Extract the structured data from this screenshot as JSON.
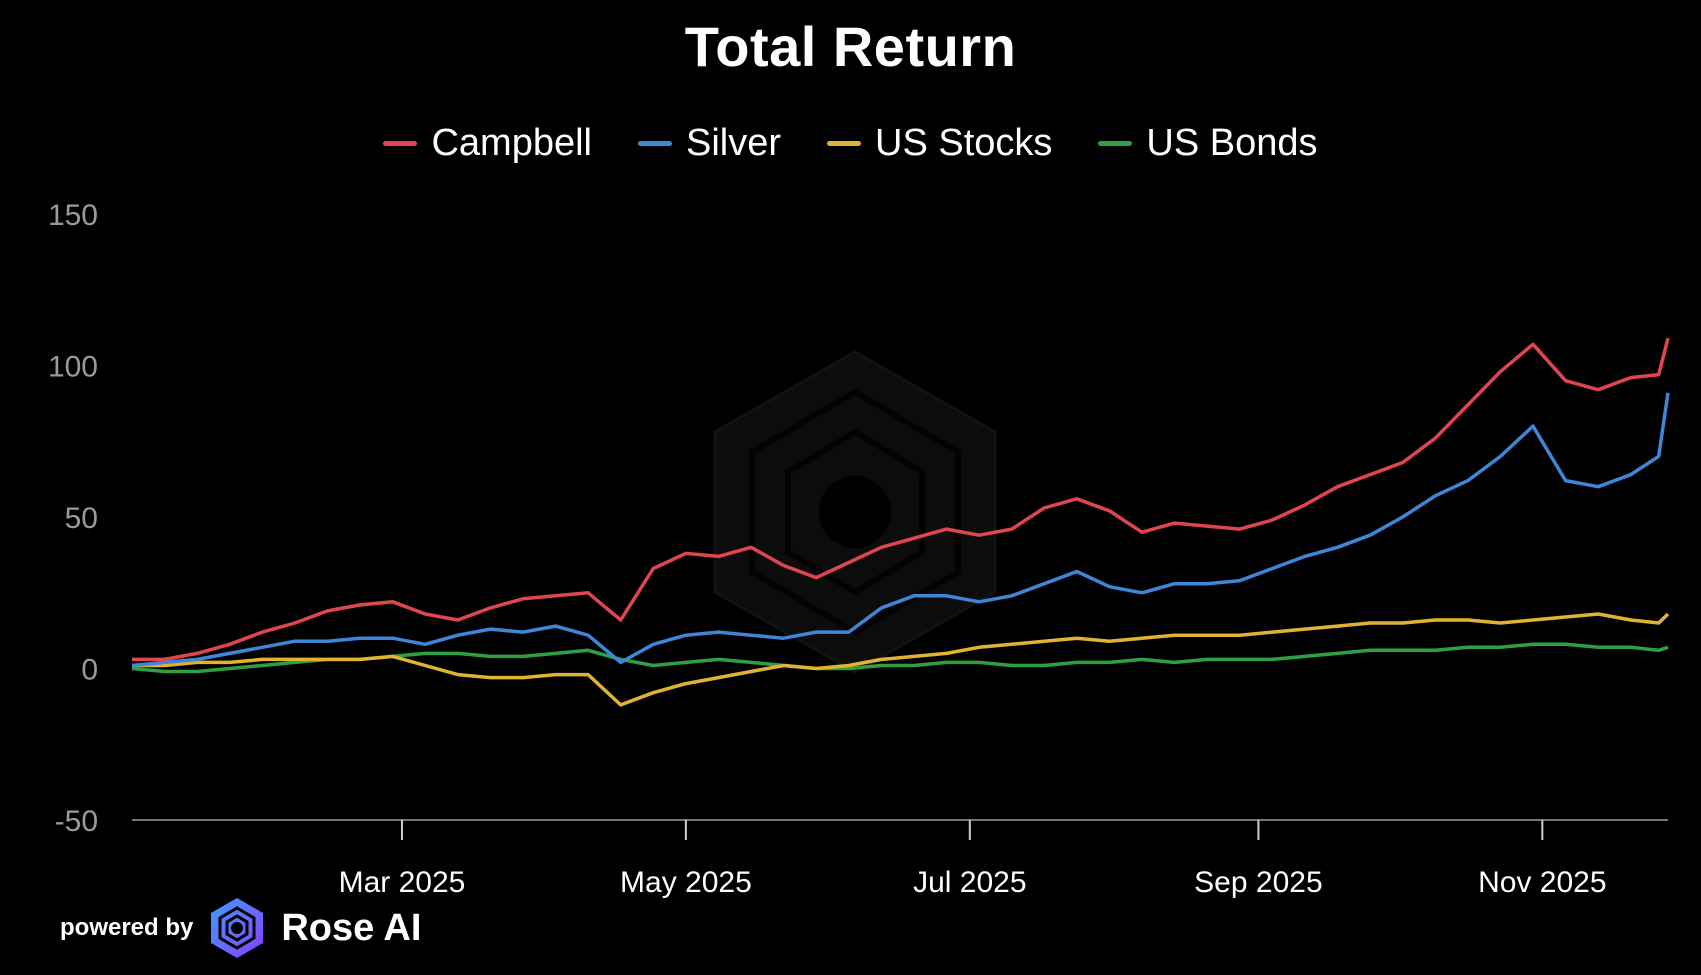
{
  "chart_data": {
    "type": "line",
    "title": "Total Return",
    "xlabel": "",
    "ylabel": "",
    "ylim": [
      -50,
      150
    ],
    "yticks": [
      "150",
      "100",
      "50",
      "0",
      "-50"
    ],
    "xticks": [
      {
        "label": "Mar 2025",
        "date": "2025-03-01"
      },
      {
        "label": "May 2025",
        "date": "2025-05-01"
      },
      {
        "label": "Jul 2025",
        "date": "2025-07-01"
      },
      {
        "label": "Sep 2025",
        "date": "2025-09-01"
      },
      {
        "label": "Nov 2025",
        "date": "2025-11-01"
      }
    ],
    "xlim": [
      "2025-01-02",
      "2025-11-28"
    ],
    "grid": false,
    "legend": "top-center",
    "x": [
      "2025-01-02",
      "2025-01-09",
      "2025-01-16",
      "2025-01-23",
      "2025-01-30",
      "2025-02-06",
      "2025-02-13",
      "2025-02-20",
      "2025-02-27",
      "2025-03-06",
      "2025-03-13",
      "2025-03-20",
      "2025-03-27",
      "2025-04-03",
      "2025-04-10",
      "2025-04-17",
      "2025-04-24",
      "2025-05-01",
      "2025-05-08",
      "2025-05-15",
      "2025-05-22",
      "2025-05-29",
      "2025-06-05",
      "2025-06-12",
      "2025-06-19",
      "2025-06-26",
      "2025-07-03",
      "2025-07-10",
      "2025-07-17",
      "2025-07-24",
      "2025-07-31",
      "2025-08-07",
      "2025-08-14",
      "2025-08-21",
      "2025-08-28",
      "2025-09-04",
      "2025-09-11",
      "2025-09-18",
      "2025-09-25",
      "2025-10-02",
      "2025-10-09",
      "2025-10-16",
      "2025-10-23",
      "2025-10-30",
      "2025-11-06",
      "2025-11-13",
      "2025-11-20",
      "2025-11-26",
      "2025-11-28"
    ],
    "series": [
      {
        "name": "Campbell",
        "color": "#e0464f",
        "values": [
          3,
          3,
          5,
          8,
          12,
          15,
          19,
          21,
          22,
          18,
          16,
          20,
          23,
          24,
          25,
          16,
          33,
          38,
          37,
          40,
          34,
          30,
          35,
          40,
          43,
          46,
          44,
          46,
          53,
          56,
          52,
          45,
          48,
          47,
          46,
          49,
          54,
          60,
          64,
          68,
          76,
          87,
          98,
          107,
          95,
          92,
          96,
          97,
          109
        ]
      },
      {
        "name": "Silver",
        "color": "#3f85d8",
        "values": [
          1,
          2,
          3,
          5,
          7,
          9,
          9,
          10,
          10,
          8,
          11,
          13,
          12,
          14,
          11,
          2,
          8,
          11,
          12,
          11,
          10,
          12,
          12,
          20,
          24,
          24,
          22,
          24,
          28,
          32,
          27,
          25,
          28,
          28,
          29,
          33,
          37,
          40,
          44,
          50,
          57,
          62,
          70,
          80,
          62,
          60,
          64,
          70,
          91
        ]
      },
      {
        "name": "US Stocks",
        "color": "#e0b431",
        "values": [
          1,
          1,
          2,
          2,
          3,
          3,
          3,
          3,
          4,
          1,
          -2,
          -3,
          -3,
          -2,
          -2,
          -12,
          -8,
          -5,
          -3,
          -1,
          1,
          0,
          1,
          3,
          4,
          5,
          7,
          8,
          9,
          10,
          9,
          10,
          11,
          11,
          11,
          12,
          13,
          14,
          15,
          15,
          16,
          16,
          15,
          16,
          17,
          18,
          16,
          15,
          18
        ]
      },
      {
        "name": "US Bonds",
        "color": "#2ea043",
        "values": [
          0,
          -1,
          -1,
          0,
          1,
          2,
          3,
          3,
          4,
          5,
          5,
          4,
          4,
          5,
          6,
          3,
          1,
          2,
          3,
          2,
          1,
          0,
          0,
          1,
          1,
          2,
          2,
          1,
          1,
          2,
          2,
          3,
          2,
          3,
          3,
          3,
          4,
          5,
          6,
          6,
          6,
          7,
          7,
          8,
          8,
          7,
          7,
          6,
          7
        ]
      }
    ]
  },
  "footer": {
    "powered_by": "powered by",
    "brand": "Rose AI"
  }
}
